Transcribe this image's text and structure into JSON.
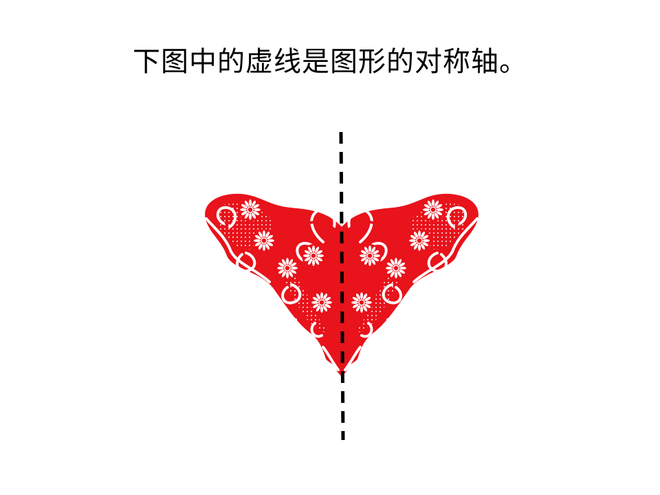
{
  "slide": {
    "title": "下图中的虚线是图形的对称轴。"
  },
  "figure": {
    "image": "butterfly-paper-cut",
    "fill_color": "#e8131b",
    "highlight_color": "#ffffff",
    "axis_color": "#000000",
    "axis_style": "dashed"
  }
}
